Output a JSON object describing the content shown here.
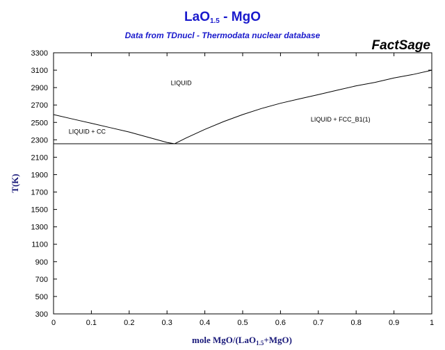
{
  "header": {
    "title_main": "LaO",
    "title_sub": "1.5",
    "title_tail": " - MgO",
    "subtitle": "Data from TDnucl - Thermodata nuclear database",
    "brand": "FactSage"
  },
  "chart_data": {
    "type": "line",
    "title": "LaO1.5 - MgO",
    "subtitle": "Data from TDnucl - Thermodata nuclear database",
    "xlabel": "mole MgO/(LaO1.5+MgO)",
    "xlabel_parts": {
      "pre": "mole MgO/(LaO",
      "sub": "1.5",
      "post": "+MgO)"
    },
    "ylabel": "T(K)",
    "xlim": [
      0,
      1
    ],
    "ylim": [
      300,
      3300
    ],
    "x_ticks": [
      "0",
      "0.1",
      "0.2",
      "0.3",
      "0.4",
      "0.5",
      "0.6",
      "0.7",
      "0.8",
      "0.9",
      "1"
    ],
    "y_ticks": [
      "300",
      "500",
      "700",
      "900",
      "1100",
      "1300",
      "1500",
      "1700",
      "1900",
      "2100",
      "2300",
      "2500",
      "2700",
      "2900",
      "3100",
      "3300"
    ],
    "grid": false,
    "series": [
      {
        "x": [
          0,
          0.05,
          0.1,
          0.15,
          0.2,
          0.25,
          0.3,
          0.32
        ],
        "y": [
          2590,
          2540,
          2490,
          2440,
          2390,
          2330,
          2270,
          2255
        ]
      },
      {
        "x": [
          0.32,
          0.35,
          0.4,
          0.45,
          0.5,
          0.55,
          0.6,
          0.65,
          0.7,
          0.75,
          0.8,
          0.85,
          0.9,
          0.95,
          1.0
        ],
        "y": [
          2255,
          2320,
          2420,
          2510,
          2590,
          2660,
          2720,
          2770,
          2820,
          2870,
          2920,
          2960,
          3010,
          3050,
          3100
        ]
      },
      {
        "x": [
          0,
          1
        ],
        "y": [
          2255,
          2255
        ]
      }
    ],
    "annotations": [
      {
        "text": "LIQUID",
        "x": 0.31,
        "y": 2930
      },
      {
        "text": "LIQUID + CC",
        "x": 0.04,
        "y": 2370
      },
      {
        "text": "LIQUID + FCC_B1(1)",
        "x": 0.68,
        "y": 2510
      }
    ]
  }
}
